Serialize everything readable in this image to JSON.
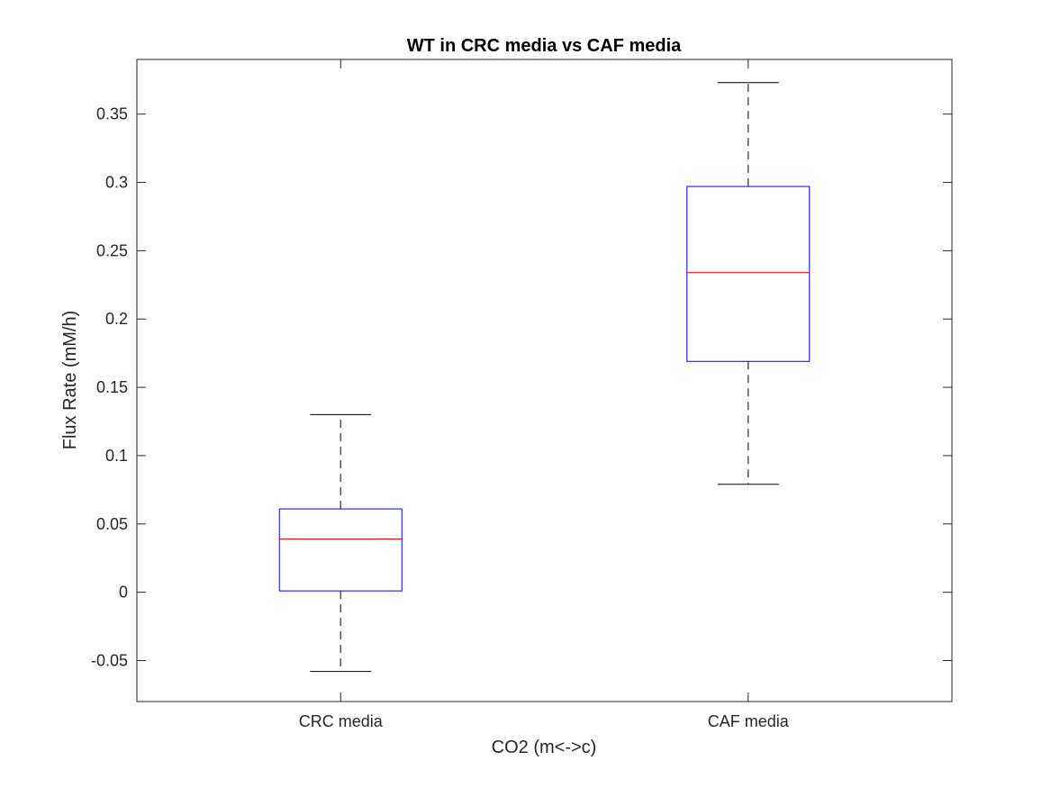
{
  "chart_data": {
    "type": "box",
    "title": "WT in CRC media vs CAF media",
    "xlabel": "CO2 (m<->c)",
    "ylabel": "Flux Rate (mM/h)",
    "ylim": [
      -0.08,
      0.39
    ],
    "yticks": [
      -0.05,
      0,
      0.05,
      0.1,
      0.15,
      0.2,
      0.25,
      0.3,
      0.35
    ],
    "ytick_labels": [
      "-0.05",
      "0",
      "0.05",
      "0.1",
      "0.15",
      "0.2",
      "0.25",
      "0.3",
      "0.35"
    ],
    "categories": [
      "CRC media",
      "CAF media"
    ],
    "boxes": [
      {
        "category": "CRC media",
        "whisker_low": -0.058,
        "q1": 0.001,
        "median": 0.039,
        "q3": 0.061,
        "whisker_high": 0.13
      },
      {
        "category": "CAF media",
        "whisker_low": 0.079,
        "q1": 0.169,
        "median": 0.234,
        "q3": 0.297,
        "whisker_high": 0.373
      }
    ],
    "grid": false,
    "colors": {
      "box": "#0000ff",
      "median": "#ff0000",
      "whisker": "#000000"
    }
  }
}
